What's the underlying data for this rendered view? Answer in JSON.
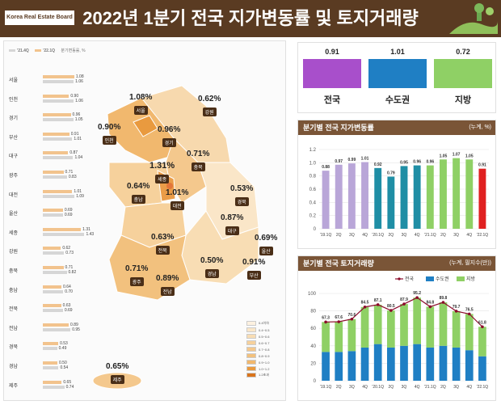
{
  "header": {
    "logo_text": "Korea Real Estate Board",
    "title": "2022년 1분기 전국 지가변동률 및 토지거래량"
  },
  "left_panel": {
    "legend": [
      "'21.4Q",
      "'22.1Q",
      "분기변동률, %"
    ],
    "regions": [
      {
        "name": "서울",
        "v1": "1.06",
        "v2": "1.08"
      },
      {
        "name": "인천",
        "v1": "1.06",
        "v2": "0.90"
      },
      {
        "name": "경기",
        "v1": "1.05",
        "v2": "0.96"
      },
      {
        "name": "부산",
        "v1": "1.01",
        "v2": "0.91"
      },
      {
        "name": "대구",
        "v1": "1.04",
        "v2": "0.87"
      },
      {
        "name": "광주",
        "v1": "0.83",
        "v2": "0.71"
      },
      {
        "name": "대전",
        "v1": "1.09",
        "v2": "1.01"
      },
      {
        "name": "울산",
        "v1": "0.69",
        "v2": "0.69"
      },
      {
        "name": "세종",
        "v1": "1.43",
        "v2": "1.31"
      },
      {
        "name": "강원",
        "v1": "0.73",
        "v2": "0.62"
      },
      {
        "name": "충북",
        "v1": "0.82",
        "v2": "0.71"
      },
      {
        "name": "충남",
        "v1": "0.70",
        "v2": "0.64"
      },
      {
        "name": "전북",
        "v1": "0.69",
        "v2": "0.63"
      },
      {
        "name": "전남",
        "v1": "0.95",
        "v2": "0.89"
      },
      {
        "name": "경북",
        "v1": "0.49",
        "v2": "0.53"
      },
      {
        "name": "경남",
        "v1": "0.54",
        "v2": "0.50"
      },
      {
        "name": "제주",
        "v1": "0.74",
        "v2": "0.65"
      }
    ],
    "map_labels": [
      {
        "pct": "1.08%",
        "name": "서울"
      },
      {
        "pct": "0.62%",
        "name": "강원"
      },
      {
        "pct": "0.90%",
        "name": "인천"
      },
      {
        "pct": "0.96%",
        "name": "경기"
      },
      {
        "pct": "0.71%",
        "name": "충북"
      },
      {
        "pct": "1.31%",
        "name": "세종"
      },
      {
        "pct": "0.64%",
        "name": "충남"
      },
      {
        "pct": "1.01%",
        "name": "대전"
      },
      {
        "pct": "0.53%",
        "name": "경북"
      },
      {
        "pct": "0.87%",
        "name": "대구"
      },
      {
        "pct": "0.63%",
        "name": "전북"
      },
      {
        "pct": "0.69%",
        "name": "울산"
      },
      {
        "pct": "0.71%",
        "name": "광주"
      },
      {
        "pct": "0.89%",
        "name": "전남"
      },
      {
        "pct": "0.50%",
        "name": "경남"
      },
      {
        "pct": "0.91%",
        "name": "부산"
      },
      {
        "pct": "0.65%",
        "name": "제주"
      }
    ],
    "map_legend": [
      "0.4이하",
      "0.4~0.5",
      "0.5~0.6",
      "0.6~0.7",
      "0.7~0.8",
      "0.8~0.9",
      "0.9~1.0",
      "1.0~1.2",
      "1.2초과"
    ]
  },
  "summary": {
    "cards": [
      {
        "value": "0.91",
        "label": "전국",
        "color": "#a84fcb"
      },
      {
        "value": "1.01",
        "label": "수도권",
        "color": "#1f7fc4"
      },
      {
        "value": "0.72",
        "label": "지방",
        "color": "#8fd065"
      }
    ]
  },
  "chart_data": [
    {
      "type": "bar",
      "title": "분기별 전국 지가변동률",
      "unit": "(누계, %)",
      "categories": [
        "'19.1Q",
        "2Q",
        "3Q",
        "4Q",
        "'20.1Q",
        "2Q",
        "3Q",
        "4Q",
        "'21.1Q",
        "2Q",
        "3Q",
        "4Q",
        "'22.1Q"
      ],
      "values": [
        0.88,
        0.97,
        0.99,
        1.01,
        0.92,
        0.79,
        0.95,
        0.96,
        0.96,
        1.05,
        1.07,
        1.05,
        0.91
      ],
      "labels": [
        "0.88",
        "0.97",
        "0.99",
        "1.01",
        "0.92",
        "0.79",
        "0.95",
        "0.96",
        "0.96",
        "1.05",
        "1.07",
        "1.05",
        "0.91"
      ],
      "colors": [
        "#b9a6d8",
        "#b9a6d8",
        "#b9a6d8",
        "#b9a6d8",
        "#1f8ea5",
        "#1f8ea5",
        "#1f8ea5",
        "#1f8ea5",
        "#8fd065",
        "#8fd065",
        "#8fd065",
        "#8fd065",
        "#e02020"
      ],
      "ylim": [
        0,
        1.2
      ],
      "yticks": [
        "0",
        "0.2",
        "0.4",
        "0.6",
        "0.8",
        "1.0",
        "1.2"
      ]
    },
    {
      "type": "bar",
      "title": "분기별 전국 토지거래량",
      "unit": "(누계, 필지수(만))",
      "categories": [
        "'19.1Q",
        "2Q",
        "3Q",
        "4Q",
        "'20.1Q",
        "2Q",
        "3Q",
        "4Q",
        "'21.1Q",
        "2Q",
        "3Q",
        "4Q",
        "'22.1Q"
      ],
      "series": [
        {
          "name": "전국",
          "values": [
            67.3,
            67.6,
            70.6,
            84.5,
            87.1,
            80.5,
            87.9,
            95.2,
            84.8,
            89.8,
            79.7,
            76.5,
            61.8
          ]
        },
        {
          "name": "수도권",
          "values": [
            33,
            33,
            34,
            38,
            42,
            38,
            40,
            42,
            38,
            40,
            38,
            35,
            28
          ]
        },
        {
          "name": "지방",
          "values": [
            34.3,
            34.6,
            36.6,
            46.5,
            45.1,
            42.5,
            47.9,
            53.2,
            46.8,
            49.8,
            41.7,
            41.5,
            33.8
          ]
        }
      ],
      "labels": [
        "67.3",
        "67.6",
        "70.6",
        "84.5",
        "87.1",
        "80.5",
        "87.9",
        "95.2",
        "84.8",
        "89.8",
        "79.7",
        "76.5",
        "61.8"
      ],
      "colors": {
        "전국": "#8b0a2a",
        "수도권": "#1f7fc4",
        "지방": "#8fd065"
      },
      "ylim": [
        0,
        100
      ],
      "yticks": [
        "0",
        "20",
        "40",
        "60",
        "80",
        "100"
      ]
    }
  ]
}
